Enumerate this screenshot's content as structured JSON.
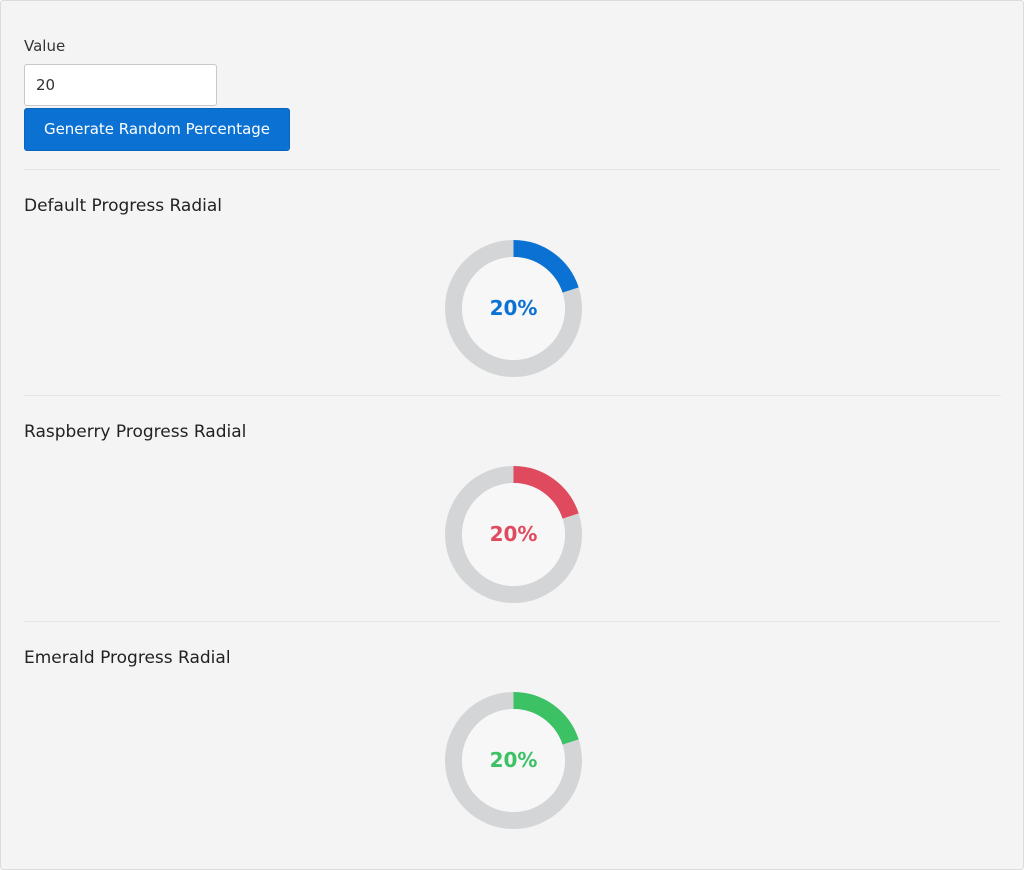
{
  "form": {
    "value_label": "Value",
    "value": "20",
    "generate_button_label": "Generate Random Percentage"
  },
  "radials": [
    {
      "title": "Default Progress Radial",
      "percent": 20,
      "label": "20%",
      "color": "#0b72d4"
    },
    {
      "title": "Raspberry Progress Radial",
      "percent": 20,
      "label": "20%",
      "color": "#e04a5f"
    },
    {
      "title": "Emerald Progress Radial",
      "percent": 20,
      "label": "20%",
      "color": "#3cc165"
    }
  ],
  "colors": {
    "track": "#d3d5d6",
    "inner": "#f7f7f7",
    "background": "#f4f4f4"
  }
}
